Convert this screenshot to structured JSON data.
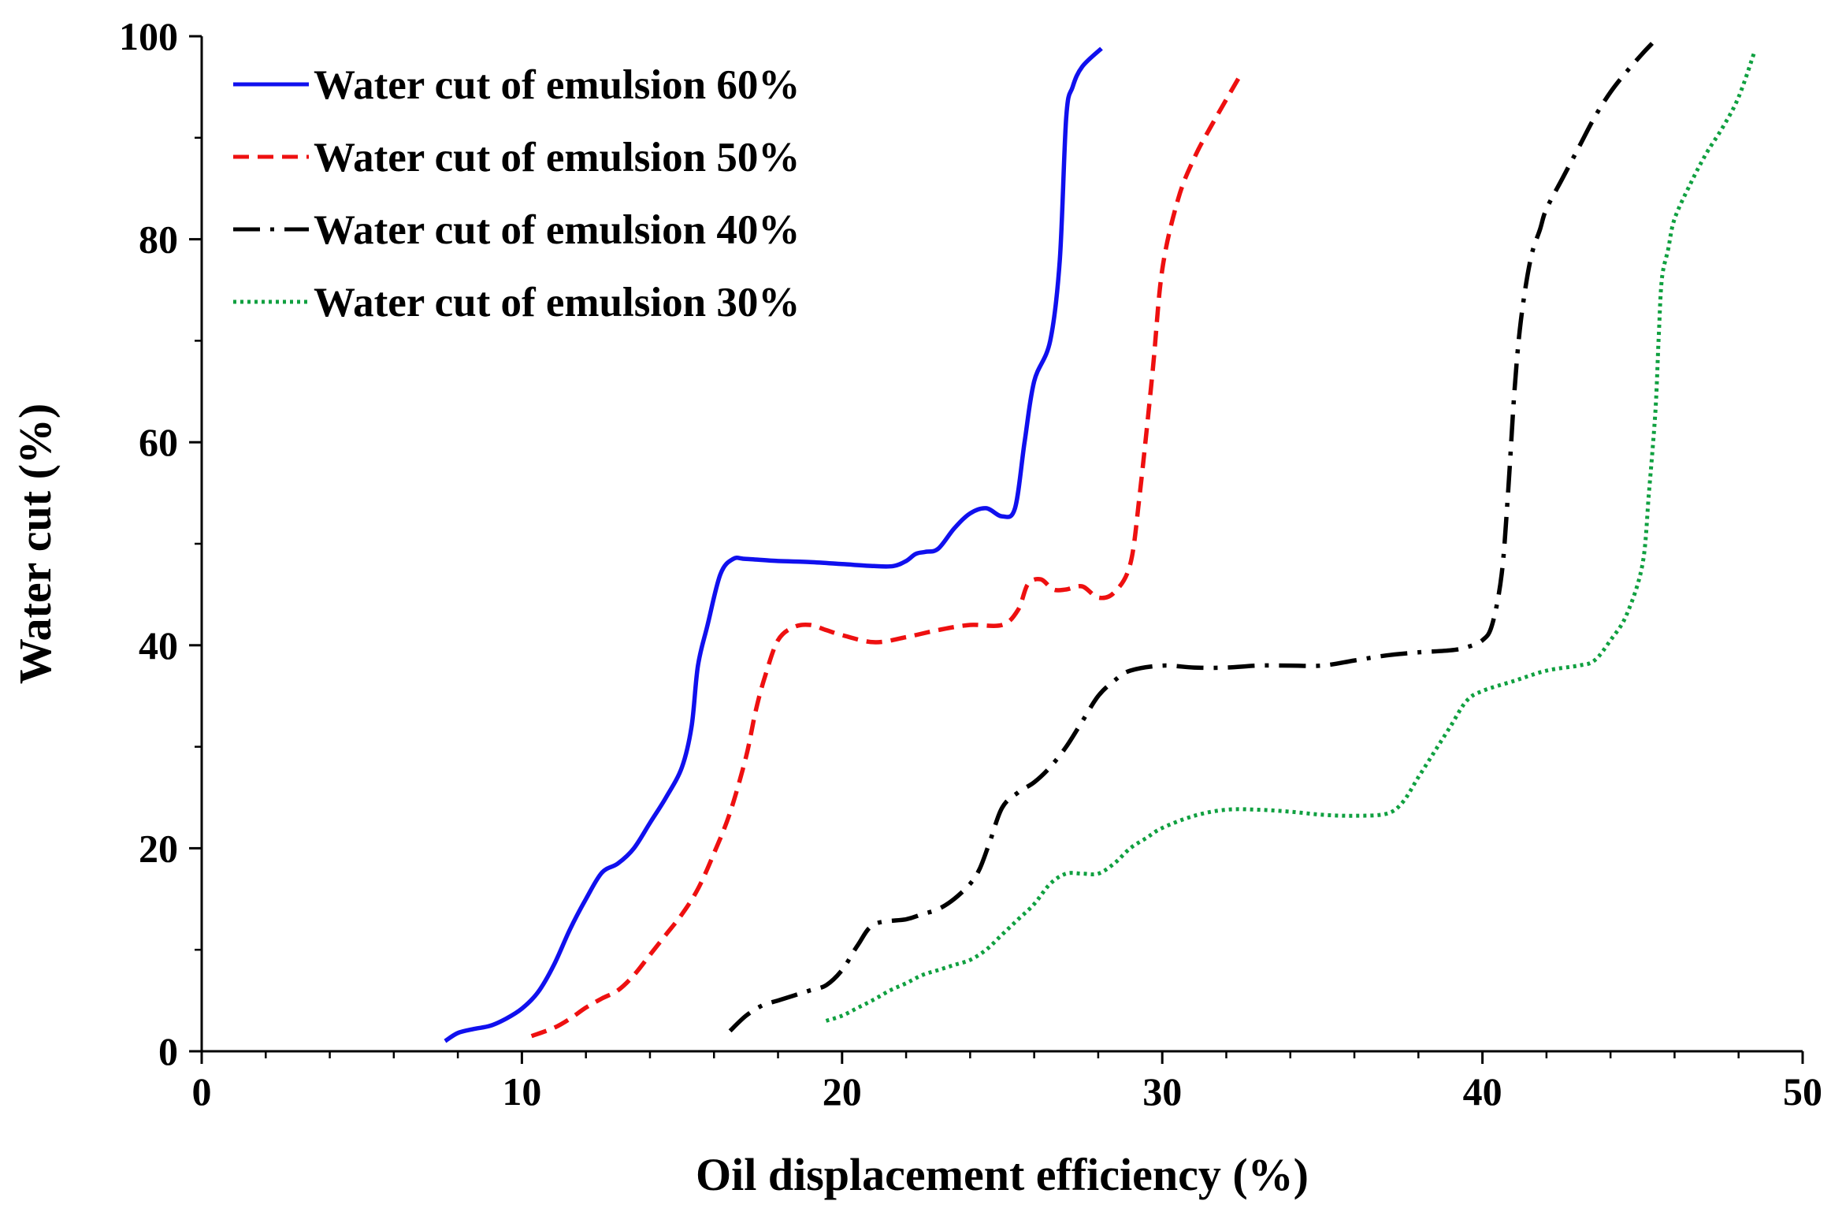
{
  "chart_data": {
    "type": "line",
    "title": "",
    "xlabel": "Oil displacement efficiency (%)",
    "ylabel": "Water cut (%)",
    "xlim": [
      0,
      50
    ],
    "ylim": [
      0,
      100
    ],
    "x_ticks": [
      0,
      10,
      20,
      30,
      40,
      50
    ],
    "y_ticks": [
      0,
      20,
      40,
      60,
      80,
      100
    ],
    "x_minor_step": 2,
    "y_minor_step": 10,
    "grid": false,
    "legend_position": "top-left",
    "series": [
      {
        "name": "Water cut of emulsion 60%",
        "color": "#1010ee",
        "style": "solid",
        "x": [
          7.6,
          8.0,
          8.5,
          9.0,
          9.5,
          10.0,
          10.5,
          11.0,
          11.5,
          12.0,
          12.5,
          13.0,
          13.5,
          14.0,
          14.5,
          15.0,
          15.3,
          15.5,
          15.8,
          16.2,
          16.6,
          17.0,
          18.0,
          19.0,
          20.0,
          21.0,
          21.6,
          22.0,
          22.3,
          22.6,
          23.0,
          23.5,
          24.0,
          24.5,
          25.0,
          25.4,
          25.7,
          26.0,
          26.5,
          26.8,
          27.0,
          27.2,
          27.5,
          28.1
        ],
        "y": [
          1,
          1.8,
          2.2,
          2.5,
          3.2,
          4.2,
          5.8,
          8.5,
          12,
          15,
          17.6,
          18.5,
          20,
          22.5,
          25,
          28,
          32,
          38,
          42,
          47,
          48.5,
          48.5,
          48.3,
          48.2,
          48,
          47.8,
          47.8,
          48.3,
          49,
          49.2,
          49.5,
          51.5,
          53,
          53.5,
          52.7,
          53.5,
          60,
          66,
          70,
          78,
          92,
          95,
          97,
          98.8
        ]
      },
      {
        "name": "Water cut of emulsion 50%",
        "color": "#ee1010",
        "style": "dashed",
        "x": [
          10.3,
          11.0,
          11.5,
          12.0,
          12.5,
          13.0,
          13.5,
          14.0,
          14.5,
          15.0,
          15.5,
          16.0,
          16.5,
          17.0,
          17.3,
          17.6,
          18.0,
          18.5,
          19.0,
          19.5,
          20.0,
          21.0,
          22.0,
          23.0,
          24.0,
          25.0,
          25.5,
          25.8,
          26.2,
          26.6,
          27.0,
          27.5,
          28.0,
          28.5,
          29.0,
          29.3,
          29.7,
          30.0,
          30.5,
          31.0,
          31.5,
          32.5
        ],
        "y": [
          1.5,
          2.3,
          3.2,
          4.3,
          5.2,
          6,
          7.5,
          9.5,
          11.5,
          13.5,
          16,
          19.5,
          23.5,
          29,
          33.5,
          37,
          40.5,
          41.8,
          42,
          41.5,
          41,
          40.3,
          40.8,
          41.5,
          42,
          42,
          43.5,
          46,
          46.5,
          45.5,
          45.5,
          45.8,
          44.7,
          45.2,
          48,
          55,
          67,
          77,
          84,
          88,
          91,
          96.5
        ]
      },
      {
        "name": "Water cut of emulsion 40%",
        "color": "#000000",
        "style": "dashdot",
        "x": [
          16.5,
          17.0,
          17.5,
          18.0,
          18.5,
          19.0,
          19.5,
          20.0,
          20.5,
          21.0,
          22.0,
          22.5,
          23.0,
          23.5,
          24.0,
          24.3,
          24.6,
          25.0,
          25.5,
          26.0,
          26.5,
          27.0,
          27.5,
          28.0,
          28.5,
          29.0,
          30.0,
          31.0,
          32.0,
          33.0,
          34.0,
          35.0,
          36.0,
          37.0,
          38.0,
          39.0,
          39.5,
          40.0,
          40.3,
          40.6,
          40.8,
          41.0,
          41.2,
          41.5,
          41.8,
          42.0,
          42.5,
          43.0,
          43.5,
          44.0,
          44.5,
          45.0,
          45.3
        ],
        "y": [
          2,
          3.5,
          4.5,
          5,
          5.5,
          6,
          6.5,
          8,
          10.5,
          12.5,
          13,
          13.5,
          14,
          15,
          16.5,
          18,
          20.5,
          24,
          25.5,
          26.5,
          28,
          30,
          32.5,
          35,
          36.5,
          37.5,
          38,
          37.8,
          37.8,
          38,
          38,
          38,
          38.5,
          39,
          39.3,
          39.5,
          39.8,
          40.5,
          42,
          47,
          55,
          65,
          72,
          78,
          81,
          83,
          86,
          89,
          92,
          94.5,
          96.5,
          98.3,
          99.3
        ]
      },
      {
        "name": "Water cut of emulsion 30%",
        "color": "#10a040",
        "style": "dotted",
        "x": [
          19.5,
          20.0,
          20.5,
          21.0,
          21.5,
          22.0,
          22.5,
          23.0,
          23.5,
          24.0,
          24.5,
          25.0,
          25.5,
          26.0,
          26.5,
          27.0,
          27.5,
          28.0,
          28.5,
          29.0,
          29.5,
          30.0,
          31.0,
          32.0,
          33.0,
          34.0,
          35.0,
          36.0,
          37.0,
          37.5,
          38.0,
          38.5,
          39.0,
          39.5,
          40.0,
          41.0,
          42.0,
          43.0,
          43.5,
          44.0,
          44.5,
          45.0,
          45.2,
          45.4,
          45.5,
          45.6,
          45.8,
          46.0,
          46.5,
          47.0,
          47.5,
          48.0,
          48.5
        ],
        "y": [
          3,
          3.5,
          4.3,
          5.1,
          6,
          6.7,
          7.5,
          8,
          8.5,
          9,
          10,
          11.5,
          13,
          14.5,
          16.5,
          17.5,
          17.5,
          17.5,
          18.5,
          20,
          21,
          22,
          23.2,
          23.8,
          23.8,
          23.6,
          23.3,
          23.2,
          23.4,
          24.5,
          27,
          29.5,
          32,
          34.5,
          35.5,
          36.5,
          37.5,
          38,
          38.5,
          40.5,
          43,
          48,
          55,
          63,
          70,
          76,
          79,
          82,
          85.5,
          88.5,
          91,
          94,
          98.5
        ]
      }
    ]
  }
}
